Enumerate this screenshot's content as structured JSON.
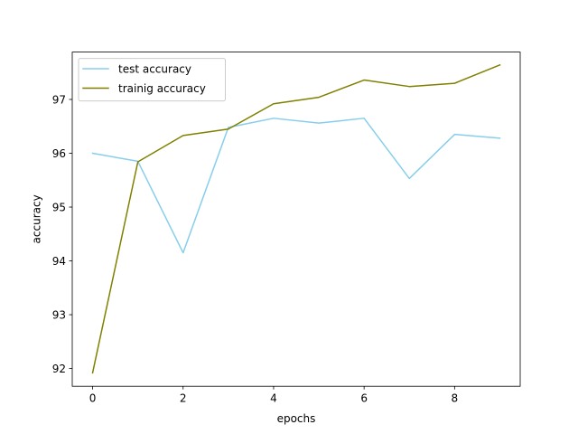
{
  "chart_data": {
    "type": "line",
    "title": "",
    "xlabel": "epochs",
    "ylabel": "accuracy",
    "x": [
      0,
      1,
      2,
      3,
      4,
      5,
      6,
      7,
      8,
      9
    ],
    "xlim": [
      -0.45,
      9.45
    ],
    "ylim": [
      91.67,
      97.88
    ],
    "xticks": [
      0,
      2,
      4,
      6,
      8
    ],
    "yticks": [
      92,
      93,
      94,
      95,
      96,
      97
    ],
    "grid": false,
    "legend": "upper left",
    "series": [
      {
        "name": "test accuracy",
        "color": "#87ceeb",
        "values": [
          96.0,
          95.85,
          94.15,
          96.48,
          96.65,
          96.56,
          96.65,
          95.53,
          96.35,
          96.28
        ]
      },
      {
        "name": "trainig accuracy",
        "color": "#808000",
        "values": [
          91.92,
          95.84,
          96.33,
          96.45,
          96.92,
          97.04,
          97.36,
          97.24,
          97.3,
          97.64
        ]
      }
    ]
  }
}
